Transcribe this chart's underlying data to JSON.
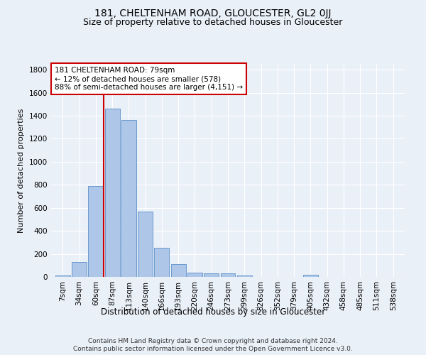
{
  "title": "181, CHELTENHAM ROAD, GLOUCESTER, GL2 0JJ",
  "subtitle": "Size of property relative to detached houses in Gloucester",
  "xlabel": "Distribution of detached houses by size in Gloucester",
  "ylabel": "Number of detached properties",
  "bar_labels": [
    "7sqm",
    "34sqm",
    "60sqm",
    "87sqm",
    "113sqm",
    "140sqm",
    "166sqm",
    "193sqm",
    "220sqm",
    "246sqm",
    "273sqm",
    "299sqm",
    "326sqm",
    "352sqm",
    "379sqm",
    "405sqm",
    "432sqm",
    "458sqm",
    "485sqm",
    "511sqm",
    "538sqm"
  ],
  "bar_values": [
    10,
    130,
    790,
    1460,
    1360,
    570,
    250,
    110,
    35,
    30,
    30,
    15,
    0,
    0,
    0,
    20,
    0,
    0,
    0,
    0,
    0
  ],
  "bar_color": "#aec6e8",
  "bar_edge_color": "#5b8fc9",
  "vline_x": 2.5,
  "vline_color": "#cc0000",
  "annotation_text": "181 CHELTENHAM ROAD: 79sqm\n← 12% of detached houses are smaller (578)\n88% of semi-detached houses are larger (4,151) →",
  "annotation_box_color": "#ffffff",
  "annotation_box_edge_color": "#cc0000",
  "ylim": [
    0,
    1850
  ],
  "yticks": [
    0,
    200,
    400,
    600,
    800,
    1000,
    1200,
    1400,
    1600,
    1800
  ],
  "bg_color": "#eaf0f8",
  "plot_bg_color": "#eaf0f8",
  "grid_color": "#ffffff",
  "footer_line1": "Contains HM Land Registry data © Crown copyright and database right 2024.",
  "footer_line2": "Contains public sector information licensed under the Open Government Licence v3.0.",
  "title_fontsize": 10,
  "subtitle_fontsize": 9,
  "xlabel_fontsize": 8.5,
  "ylabel_fontsize": 8,
  "tick_fontsize": 7.5,
  "annotation_fontsize": 7.5,
  "footer_fontsize": 6.5
}
